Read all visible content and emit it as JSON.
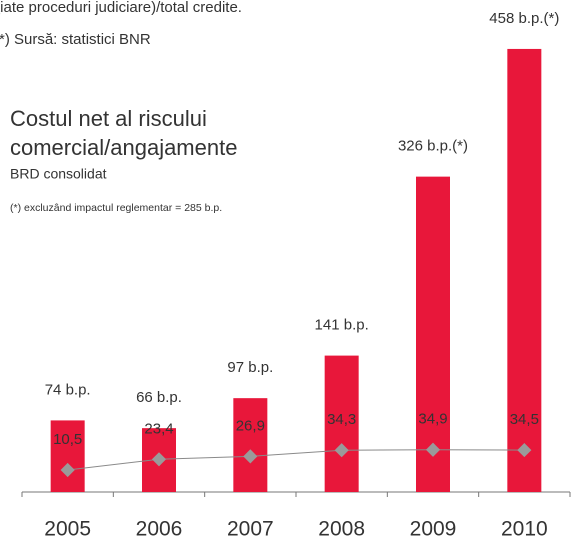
{
  "chart_data": {
    "type": "bar",
    "notes": [
      "ţiate proceduri judiciare)/total credite.",
      "(*) Sursă: statistici BNR"
    ],
    "title_lines": [
      "Costul net al riscului",
      "comercial/angajamente"
    ],
    "subtitle": "BRD consolidat",
    "annotation": "(*) excluzând impactul reglementar = 285 b.p.",
    "categories": [
      "2005",
      "2006",
      "2007",
      "2008",
      "2009",
      "2010"
    ],
    "values": [
      74,
      66,
      97,
      141,
      326,
      458
    ],
    "value_labels": [
      "74 b.p.",
      "66 b.p.",
      "97 b.p.",
      "141 b.p.",
      "326 b.p.(*)",
      "458 b.p.(*)"
    ],
    "color": "#e8173a",
    "ylim": [
      0,
      460
    ],
    "line": {
      "type": "line",
      "axis": "y2",
      "color": "#8a8a8a",
      "marker_color": "#9a9a9a",
      "values": [
        10.5,
        23.4,
        26.9,
        34.3,
        34.9,
        34.5
      ],
      "value_labels": [
        "10,5",
        "23,4",
        "26,9",
        "34,3",
        "34,9",
        "34,5"
      ]
    },
    "y2lim": [
      -16,
      520
    ]
  }
}
